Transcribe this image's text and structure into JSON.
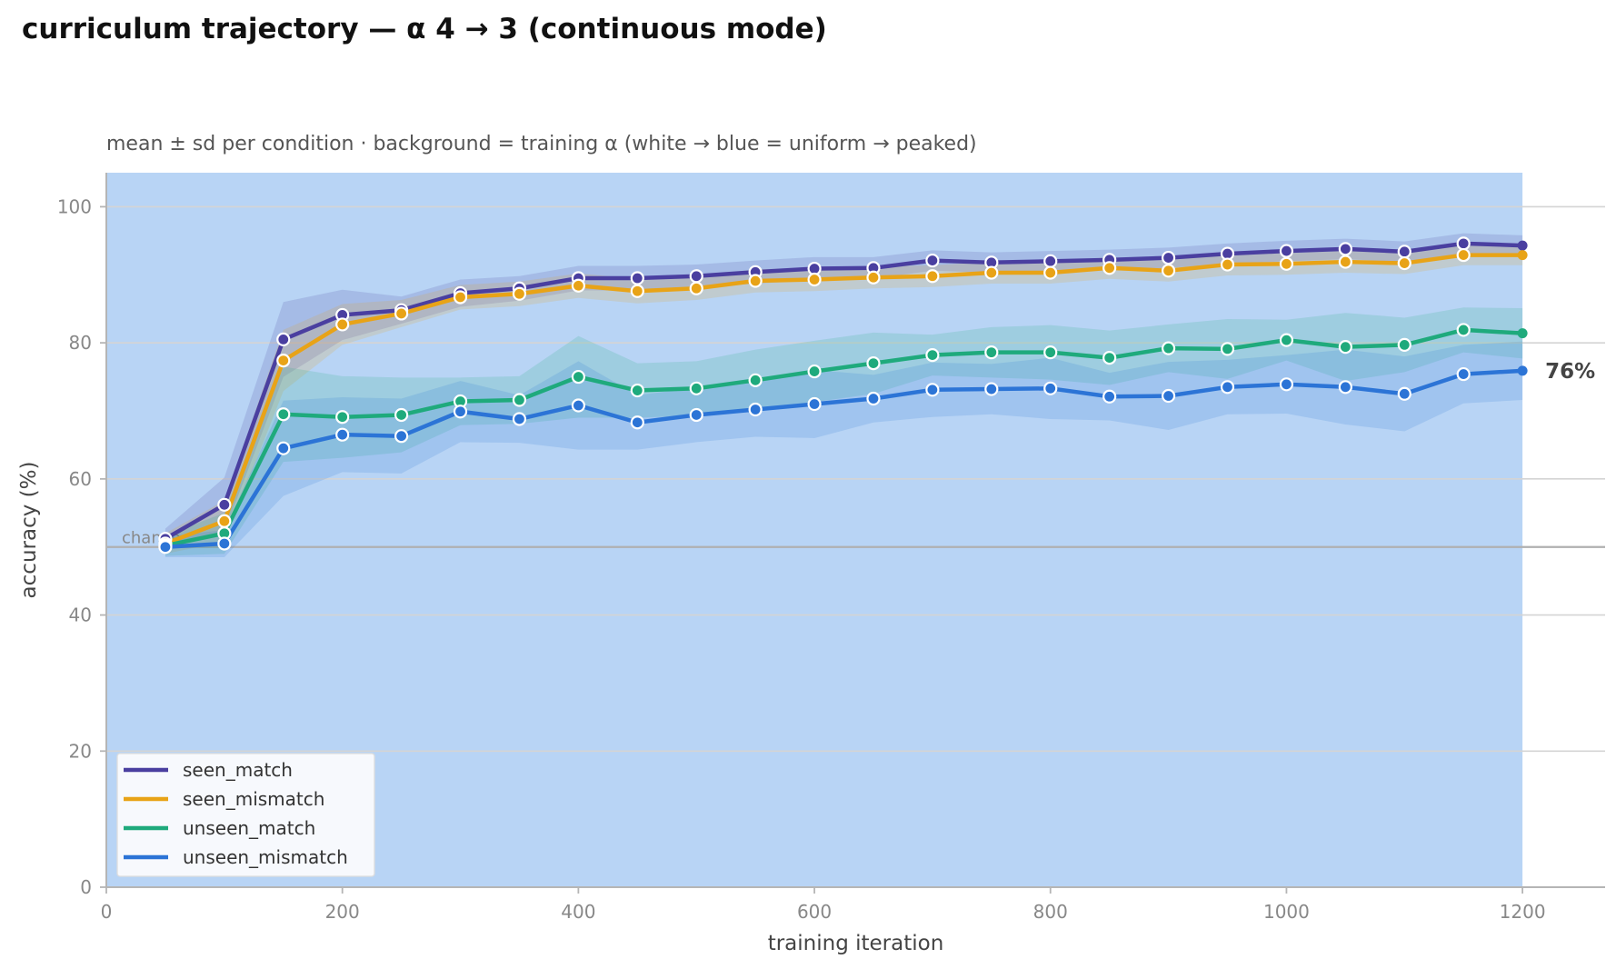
{
  "title": "curriculum trajectory — α 4 → 3 (continuous mode)",
  "subtitle": "mean ± sd per condition · background = training α (white → blue = uniform → peaked)",
  "chart_data": {
    "type": "line",
    "xlabel": "training iteration",
    "ylabel": "accuracy (%)",
    "xlim": [
      0,
      1270
    ],
    "ylim": [
      0,
      105
    ],
    "x_ticks": [
      0,
      200,
      400,
      600,
      800,
      1000,
      1200
    ],
    "y_ticks": [
      0,
      20,
      40,
      60,
      80,
      100
    ],
    "grid": "horizontal",
    "background_shading": {
      "from": 0,
      "to": 1200,
      "color": "#b8d4f5"
    },
    "chance": {
      "value": 50,
      "label": "chance"
    },
    "end_label": {
      "series": "unseen_mismatch",
      "text": "76%"
    },
    "legend_position": "lower-left",
    "x": [
      50,
      100,
      150,
      200,
      250,
      300,
      350,
      400,
      450,
      500,
      550,
      600,
      650,
      700,
      750,
      800,
      850,
      900,
      950,
      1000,
      1050,
      1100,
      1150,
      1200
    ],
    "series": [
      {
        "name": "seen_match",
        "color": "#4a3fa0",
        "values": [
          51.2,
          56.2,
          80.5,
          84.1,
          84.8,
          87.3,
          88.0,
          89.5,
          89.5,
          89.8,
          90.4,
          90.9,
          91.0,
          92.1,
          91.8,
          92.0,
          92.2,
          92.5,
          93.1,
          93.5,
          93.8,
          93.4,
          94.6,
          94.3
        ],
        "sd": [
          1.5,
          4.0,
          5.5,
          3.7,
          2.0,
          2.0,
          1.8,
          1.8,
          1.8,
          1.7,
          1.7,
          1.7,
          1.6,
          1.5,
          1.5,
          1.5,
          1.5,
          1.5,
          1.5,
          1.5,
          1.5,
          1.5,
          1.5,
          1.5
        ]
      },
      {
        "name": "seen_mismatch",
        "color": "#e8a317",
        "values": [
          50.5,
          53.8,
          77.4,
          82.7,
          84.3,
          86.7,
          87.2,
          88.4,
          87.6,
          88.0,
          89.1,
          89.3,
          89.6,
          89.8,
          90.3,
          90.3,
          91.0,
          90.6,
          91.5,
          91.6,
          91.9,
          91.7,
          92.9,
          92.9
        ],
        "sd": [
          1.5,
          3.0,
          4.5,
          3.0,
          2.0,
          1.8,
          1.8,
          1.8,
          1.8,
          1.7,
          1.7,
          1.7,
          1.6,
          1.6,
          1.6,
          1.6,
          1.6,
          1.6,
          1.6,
          1.6,
          1.6,
          1.6,
          1.5,
          1.5
        ]
      },
      {
        "name": "unseen_match",
        "color": "#1faa7c",
        "values": [
          50.2,
          52.0,
          69.5,
          69.1,
          69.4,
          71.4,
          71.6,
          75.0,
          73.0,
          73.3,
          74.5,
          75.8,
          77.0,
          78.2,
          78.6,
          78.6,
          77.8,
          79.2,
          79.1,
          80.4,
          79.4,
          79.7,
          81.9,
          81.4
        ],
        "sd": [
          1.5,
          3.0,
          7.0,
          6.0,
          5.5,
          3.5,
          3.5,
          6.0,
          4.0,
          4.0,
          4.5,
          4.5,
          4.5,
          3.0,
          3.7,
          4.0,
          4.0,
          3.5,
          4.4,
          3.0,
          5.0,
          4.0,
          3.3,
          3.7
        ]
      },
      {
        "name": "unseen_mismatch",
        "color": "#2c74d6",
        "values": [
          50.0,
          50.5,
          64.5,
          66.5,
          66.3,
          69.9,
          68.8,
          70.8,
          68.3,
          69.4,
          70.2,
          71.0,
          71.8,
          73.1,
          73.2,
          73.3,
          72.1,
          72.2,
          73.5,
          73.9,
          73.5,
          72.5,
          75.4,
          75.9
        ],
        "sd": [
          1.5,
          2.0,
          7.0,
          5.5,
          5.5,
          4.5,
          3.5,
          6.5,
          4.0,
          4.0,
          4.0,
          5.0,
          3.5,
          4.0,
          3.7,
          4.5,
          3.5,
          5.0,
          4.0,
          4.3,
          5.5,
          5.5,
          4.3,
          4.3
        ]
      }
    ]
  }
}
